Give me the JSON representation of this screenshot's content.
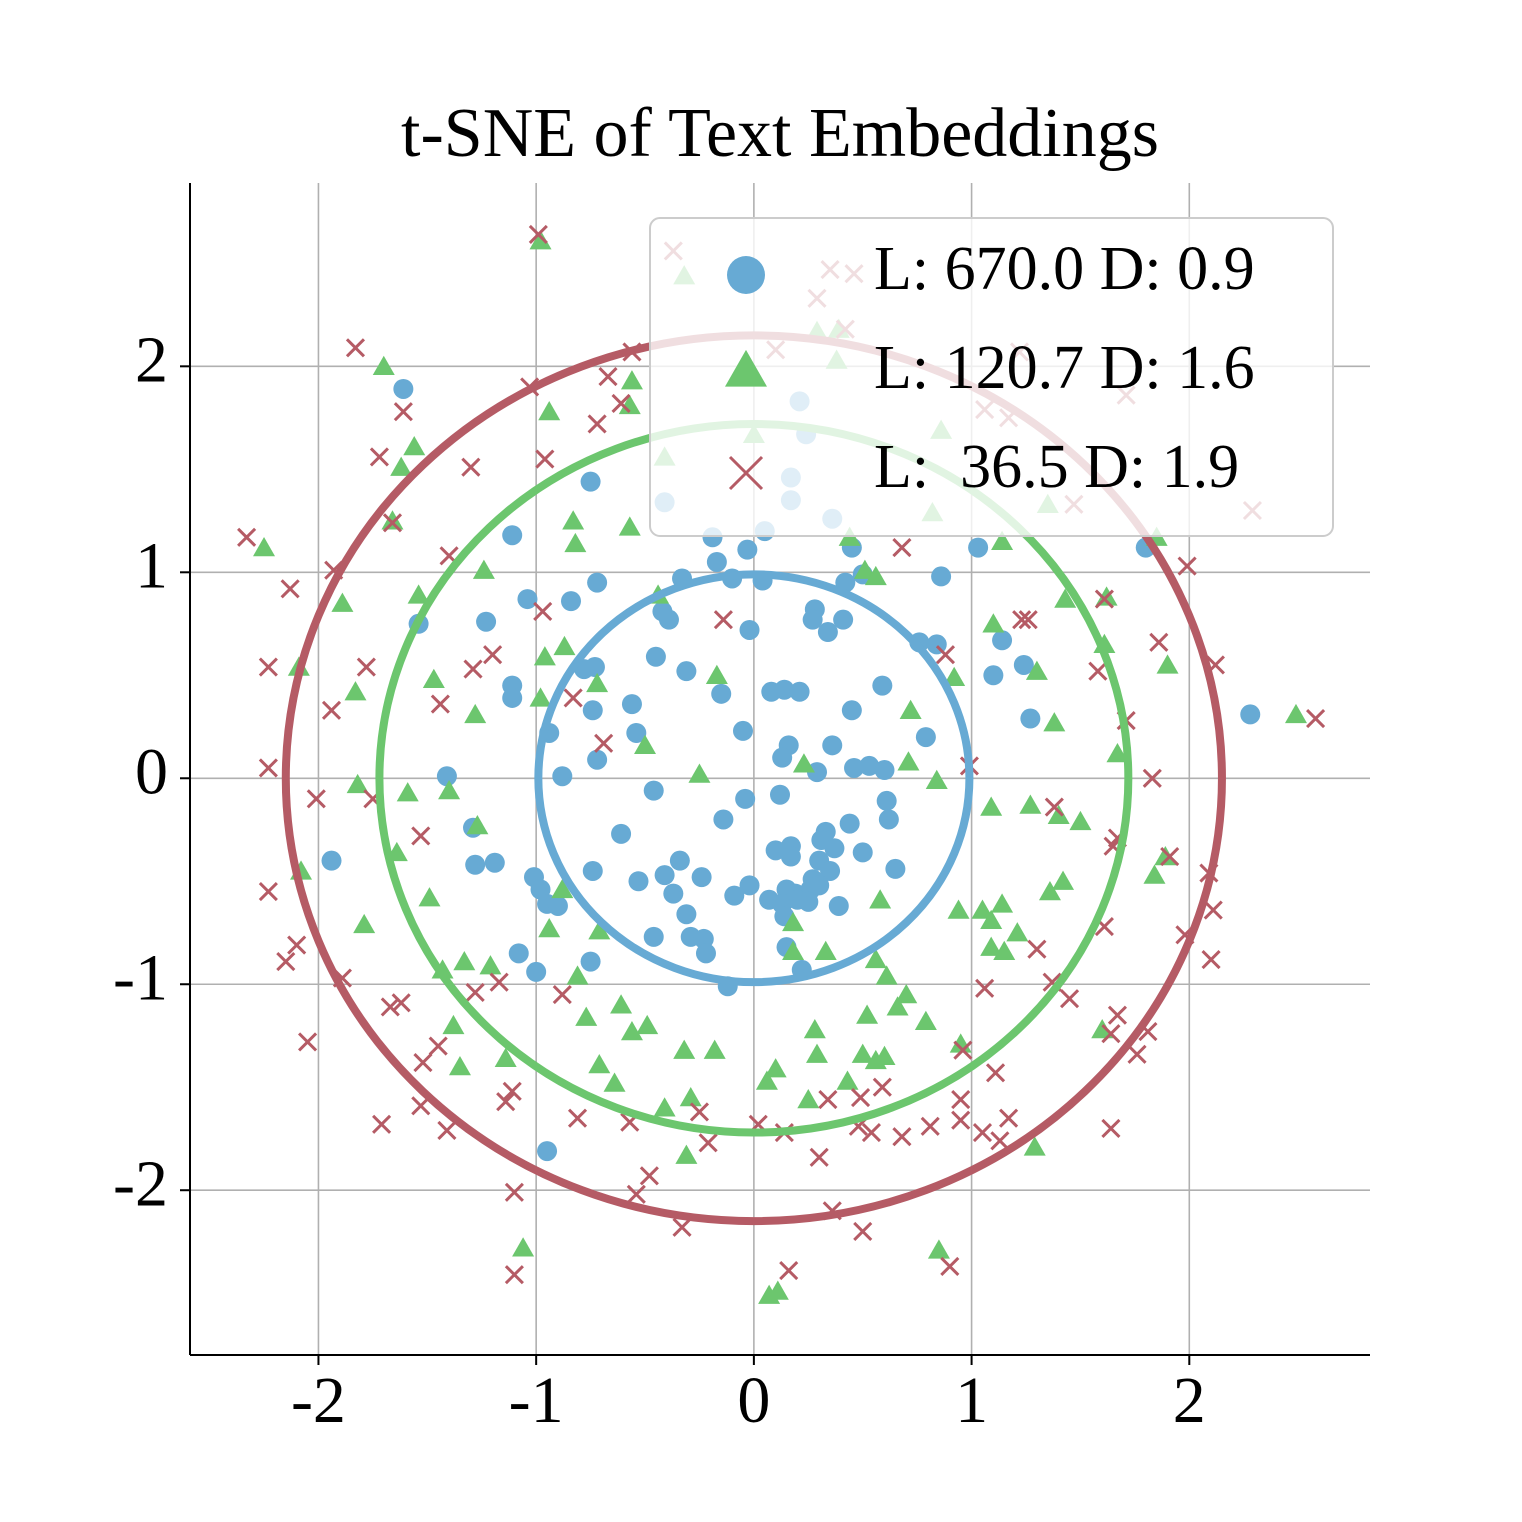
{
  "chart_data": {
    "type": "scatter",
    "title": "t-SNE of Text Embeddings",
    "xlim": [
      -2.59,
      2.83
    ],
    "ylim": [
      -2.8,
      2.89
    ],
    "xticks": [
      -2,
      -1,
      0,
      1,
      2
    ],
    "yticks": [
      -2,
      -1,
      0,
      1,
      2
    ],
    "grid": true,
    "legend": "upper right",
    "series": [
      {
        "name": "L: 670.0 D: 0.9",
        "color": "#67aad4",
        "marker": "circle",
        "radius": 0.99,
        "x": [
          -1.61,
          -0.75,
          0.21,
          0.24,
          0.17,
          0.17,
          -0.41,
          0.36,
          0.05,
          -0.19,
          -0.03,
          0.45,
          -0.17,
          -1.11,
          1.8,
          1.03,
          -0.72,
          -0.33,
          -0.1,
          0.04,
          0.42,
          0.5,
          0.86,
          -1.04,
          -0.84,
          -0.42,
          -0.39,
          0.28,
          0.27,
          0.34,
          0.41,
          -0.02,
          -1.23,
          -1.54,
          0.76,
          0.84,
          1.14,
          1.24,
          1.1,
          -0.45,
          -0.73,
          -0.78,
          -0.31,
          -1.11,
          -1.11,
          -0.15,
          0.08,
          0.14,
          0.21,
          0.59,
          -0.56,
          -0.74,
          0.45,
          1.27,
          2.28,
          -0.94,
          -0.54,
          -0.05,
          0.16,
          0.13,
          0.36,
          0.79,
          -0.72,
          -0.88,
          -1.41,
          0.46,
          0.53,
          0.6,
          0.29,
          0.12,
          -0.04,
          -0.46,
          0.61,
          0.62,
          0.44,
          -0.14,
          -0.61,
          -1.29,
          0.33,
          0.31,
          0.17,
          0.1,
          0.37,
          0.17,
          0.5,
          -1.94,
          -1.28,
          -1.19,
          -0.34,
          0.3,
          0.35,
          -0.41,
          -0.74,
          -1.01,
          0.27,
          0.65,
          -0.53,
          -0.02,
          -0.24,
          -0.98,
          -0.37,
          0.26,
          0.3,
          0.19,
          0.15,
          -0.09,
          0.07,
          0.25,
          0.2,
          0.13,
          -0.95,
          -0.9,
          0.39,
          -0.31,
          0.14,
          -0.29,
          -0.23,
          -0.46,
          -1.08,
          -0.22,
          -1.0,
          0.15,
          -0.75,
          0.22,
          -0.12,
          -0.95
        ],
        "y": [
          1.89,
          1.44,
          1.83,
          1.67,
          1.46,
          1.35,
          1.34,
          1.26,
          1.2,
          1.17,
          1.11,
          1.12,
          1.05,
          1.18,
          1.12,
          1.12,
          0.95,
          0.97,
          0.97,
          0.96,
          0.95,
          0.99,
          0.98,
          0.87,
          0.86,
          0.81,
          0.77,
          0.82,
          0.77,
          0.71,
          0.77,
          0.72,
          0.76,
          0.75,
          0.66,
          0.65,
          0.67,
          0.55,
          0.5,
          0.59,
          0.54,
          0.53,
          0.52,
          0.45,
          0.39,
          0.41,
          0.42,
          0.43,
          0.42,
          0.45,
          0.36,
          0.33,
          0.33,
          0.29,
          0.31,
          0.22,
          0.22,
          0.23,
          0.16,
          0.1,
          0.16,
          0.2,
          0.09,
          0.01,
          0.01,
          0.05,
          0.06,
          0.04,
          0.03,
          -0.08,
          -0.1,
          -0.06,
          -0.11,
          -0.2,
          -0.22,
          -0.2,
          -0.27,
          -0.24,
          -0.26,
          -0.3,
          -0.33,
          -0.35,
          -0.34,
          -0.38,
          -0.36,
          -0.4,
          -0.42,
          -0.41,
          -0.4,
          -0.4,
          -0.45,
          -0.47,
          -0.45,
          -0.48,
          -0.49,
          -0.44,
          -0.5,
          -0.52,
          -0.48,
          -0.54,
          -0.56,
          -0.54,
          -0.52,
          -0.56,
          -0.54,
          -0.57,
          -0.59,
          -0.6,
          -0.59,
          -0.61,
          -0.61,
          -0.62,
          -0.62,
          -0.66,
          -0.67,
          -0.77,
          -0.78,
          -0.77,
          -0.85,
          -0.85,
          -0.94,
          -0.82,
          -0.89,
          -0.93,
          -1.01,
          -1.81
        ]
      },
      {
        "name": "L: 120.7 D: 1.6",
        "color": "#6cc66e",
        "marker": "triangle",
        "radius": 1.72,
        "x": [
          -0.98,
          -1.7,
          -0.56,
          -0.94,
          -0.57,
          -1.56,
          -1.62,
          -1.66,
          -2.25,
          -0.83,
          -0.82,
          -0.57,
          0.44,
          1.14,
          1.85,
          -1.24,
          -1.54,
          -1.89,
          0.51,
          0.56,
          1.43,
          1.62,
          1.1,
          1.61,
          1.9,
          -0.44,
          -0.87,
          -0.96,
          -2.09,
          -1.47,
          -0.72,
          -0.17,
          -1.28,
          -1.83,
          1.3,
          0.92,
          0.72,
          1.38,
          1.67,
          -0.5,
          -0.25,
          0.23,
          0.71,
          -1.82,
          -1.4,
          -1.59,
          0.84,
          -0.98,
          -1.27,
          -1.64,
          -2.08,
          1.42,
          1.36,
          1.84,
          1.89,
          1.09,
          1.27,
          1.4,
          1.5,
          -1.49,
          -0.88,
          -1.79,
          -0.94,
          -0.71,
          0.18,
          0.58,
          0.94,
          1.05,
          1.14,
          1.09,
          1.21,
          1.09,
          1.15,
          0.18,
          0.33,
          0.56,
          0.61,
          -1.43,
          -1.33,
          -1.21,
          -0.81,
          0.7,
          0.66,
          0.79,
          0.52,
          -0.61,
          -0.77,
          -0.56,
          -0.49,
          -1.38,
          0.28,
          0.95,
          1.6,
          -0.32,
          -0.18,
          0.29,
          0.5,
          0.56,
          0.6,
          -1.14,
          -0.71,
          0.1,
          0.06,
          -1.35,
          -0.64,
          0.43,
          -0.29,
          -0.41,
          0.25,
          -0.31,
          1.29,
          -1.06,
          0.85,
          0.07,
          0.11,
          2.49,
          -0.32,
          0.29,
          0.39,
          0.38,
          -0.41,
          0.0,
          0.86,
          1.35,
          0.82
        ],
        "y": [
          2.6,
          1.99,
          1.92,
          1.77,
          1.8,
          1.6,
          1.5,
          1.24,
          1.11,
          1.24,
          1.13,
          1.21,
          1.16,
          1.14,
          1.16,
          1.0,
          0.88,
          0.84,
          1.0,
          0.97,
          0.86,
          0.87,
          0.74,
          0.64,
          0.54,
          0.88,
          0.63,
          0.58,
          0.53,
          0.47,
          0.45,
          0.49,
          0.3,
          0.41,
          0.51,
          0.48,
          0.32,
          0.26,
          0.11,
          0.15,
          0.01,
          0.06,
          0.07,
          -0.04,
          -0.07,
          -0.08,
          -0.02,
          0.38,
          -0.24,
          -0.37,
          -0.46,
          -0.51,
          -0.56,
          -0.48,
          -0.39,
          -0.15,
          -0.14,
          -0.19,
          -0.22,
          -0.59,
          -0.55,
          -0.72,
          -0.74,
          -0.75,
          -0.71,
          -0.6,
          -0.65,
          -0.65,
          -0.62,
          -0.7,
          -0.76,
          -0.83,
          -0.85,
          -0.85,
          -0.85,
          -0.89,
          -0.97,
          -0.94,
          -0.9,
          -0.92,
          -0.97,
          -1.06,
          -1.12,
          -1.19,
          -1.16,
          -1.11,
          -1.17,
          -1.24,
          -1.21,
          -1.21,
          -1.23,
          -1.3,
          -1.23,
          -1.33,
          -1.33,
          -1.35,
          -1.35,
          -1.38,
          -1.36,
          -1.37,
          -1.4,
          -1.42,
          -1.48,
          -1.41,
          -1.49,
          -1.48,
          -1.56,
          -1.61,
          -1.57,
          -1.84,
          -1.8,
          -2.29,
          -2.3,
          -2.52,
          -2.5,
          0.3,
          2.43,
          2.16,
          2.17,
          2.02,
          1.55,
          1.66,
          1.68,
          1.32,
          1.28
        ]
      },
      {
        "name": "L:  36.5 D: 1.9",
        "color": "#b55b65",
        "marker": "x",
        "radius": 2.15,
        "x": [
          -0.99,
          -0.37,
          0.35,
          0.46,
          0.29,
          0.42,
          -1.83,
          -0.56,
          -1.03,
          -0.67,
          -1.61,
          -0.72,
          -0.61,
          -1.72,
          -1.3,
          -0.96,
          1.71,
          1.06,
          1.17,
          -2.33,
          -1.66,
          -1.4,
          -1.93,
          0.68,
          1.99,
          -2.13,
          -0.97,
          -0.14,
          1.61,
          1.23,
          1.26,
          -2.23,
          -1.78,
          -1.29,
          -1.2,
          1.86,
          2.12,
          -1.94,
          -1.44,
          -0.83,
          0.88,
          1.58,
          1.71,
          -0.69,
          2.58,
          -2.23,
          0.99,
          -2.01,
          -1.75,
          1.83,
          -1.53,
          1.38,
          1.67,
          1.65,
          1.91,
          -2.23,
          2.09,
          2.11,
          -2.1,
          -2.15,
          -1.89,
          1.98,
          2.1,
          1.61,
          1.3,
          -0.88,
          -1.28,
          -1.17,
          -1.67,
          -1.62,
          1.06,
          1.37,
          1.45,
          -2.05,
          -1.45,
          -1.52,
          1.67,
          1.64,
          1.81,
          1.76,
          0.96,
          1.11,
          -1.71,
          -1.53,
          -1.41,
          -1.11,
          -1.14,
          -0.81,
          -0.57,
          -0.25,
          -0.21,
          0.02,
          0.14,
          0.34,
          0.49,
          0.59,
          0.48,
          0.54,
          0.68,
          0.81,
          0.95,
          0.95,
          1.05,
          1.13,
          1.17,
          1.64,
          -0.48,
          -0.54,
          0.3,
          -1.1,
          0.36,
          0.5,
          -0.33,
          0.16,
          -1.1,
          0.9,
          2.29,
          1.47,
          1.22,
          0.1
        ],
        "y": [
          2.64,
          2.56,
          2.47,
          2.45,
          2.33,
          2.18,
          2.09,
          2.07,
          1.9,
          1.95,
          1.78,
          1.72,
          1.82,
          1.56,
          1.51,
          1.55,
          1.86,
          1.79,
          1.75,
          1.17,
          1.24,
          1.08,
          1.01,
          1.12,
          1.03,
          0.92,
          0.81,
          0.77,
          0.87,
          0.77,
          0.77,
          0.54,
          0.54,
          0.53,
          0.6,
          0.66,
          0.55,
          0.33,
          0.36,
          0.39,
          0.6,
          0.52,
          0.28,
          0.17,
          0.29,
          0.05,
          0.06,
          -0.1,
          -0.1,
          0.0,
          -0.28,
          -0.14,
          -0.29,
          -0.33,
          -0.38,
          -0.55,
          -0.46,
          -0.64,
          -0.81,
          -0.89,
          -0.97,
          -0.76,
          -0.88,
          -0.72,
          -0.83,
          -1.05,
          -1.04,
          -0.99,
          -1.11,
          -1.09,
          -1.02,
          -0.99,
          -1.07,
          -1.28,
          -1.3,
          -1.38,
          -1.15,
          -1.24,
          -1.23,
          -1.34,
          -1.32,
          -1.43,
          -1.68,
          -1.59,
          -1.71,
          -1.52,
          -1.57,
          -1.65,
          -1.67,
          -1.62,
          -1.77,
          -1.68,
          -1.72,
          -1.56,
          -1.55,
          -1.5,
          -1.69,
          -1.72,
          -1.74,
          -1.69,
          -1.56,
          -1.66,
          -1.72,
          -1.76,
          -1.65,
          -1.7,
          -1.93,
          -2.02,
          -1.84,
          -2.01,
          -2.1,
          -2.2,
          -2.18,
          -2.39,
          -2.41,
          -2.37,
          1.3,
          1.33,
          2.07,
          2.08
        ]
      }
    ]
  }
}
